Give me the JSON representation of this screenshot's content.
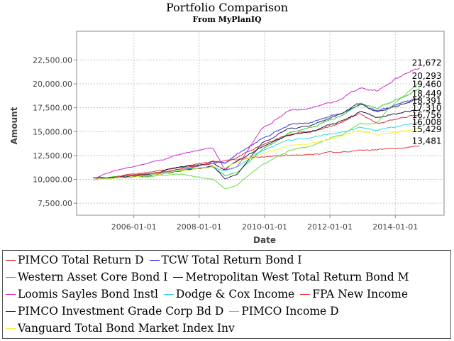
{
  "chart_data": {
    "type": "line",
    "title": "Portfolio Comparison",
    "subtitle": "From MyPlanIQ",
    "xlabel": "Date",
    "ylabel": "Amount",
    "x_start": "2004-10-01",
    "x_end": "2014-09-30",
    "xlim": [
      "2004-04-01",
      "2015-06-30"
    ],
    "ylim": [
      6250,
      25500
    ],
    "x_ticks": [
      "2006-01-01",
      "2008-01-01",
      "2010-01-01",
      "2012-01-01",
      "2014-01-01"
    ],
    "y_ticks": [
      7500,
      10000,
      12500,
      15000,
      17500,
      20000,
      22500
    ],
    "y_tick_labels": [
      "7,500.00",
      "10,000.00",
      "12,500.00",
      "15,000.00",
      "17,500.00",
      "20,000.00",
      "22,500.00"
    ],
    "grid": true,
    "legend_position": "bottom",
    "series": [
      {
        "name": "PIMCO Total Return D",
        "color": "#d9333a",
        "end_label": "16,756",
        "x": [
          "2004-10-01",
          "2005-06-01",
          "2006-06-01",
          "2007-06-01",
          "2008-06-01",
          "2008-10-15",
          "2009-03-01",
          "2009-12-01",
          "2010-10-01",
          "2011-06-01",
          "2012-06-01",
          "2012-12-01",
          "2013-06-15",
          "2014-01-01",
          "2014-09-30"
        ],
        "values": [
          10000,
          10300,
          10700,
          11300,
          11900,
          11700,
          12300,
          13600,
          14700,
          15000,
          16000,
          16900,
          15900,
          16300,
          16756
        ]
      },
      {
        "name": "TCW Total Return Bond I",
        "color": "#3a3ad9",
        "end_label": "18,449",
        "x": [
          "2004-10-01",
          "2005-06-01",
          "2006-06-01",
          "2007-06-01",
          "2008-06-01",
          "2008-10-15",
          "2009-03-01",
          "2009-12-01",
          "2010-10-01",
          "2011-06-01",
          "2012-06-01",
          "2012-12-01",
          "2013-06-15",
          "2014-01-01",
          "2014-09-30"
        ],
        "values": [
          10000,
          10150,
          10350,
          11000,
          11800,
          11700,
          12600,
          14300,
          15700,
          16000,
          17000,
          17900,
          17200,
          17800,
          18449
        ]
      },
      {
        "name": "Western Asset Core Bond I",
        "color": "#33cc33",
        "end_label": "19,460",
        "x": [
          "2004-10-01",
          "2005-06-01",
          "2006-06-01",
          "2007-06-01",
          "2008-06-01",
          "2008-10-15",
          "2009-03-01",
          "2009-12-01",
          "2010-10-01",
          "2011-06-01",
          "2012-06-01",
          "2012-12-01",
          "2013-06-15",
          "2014-01-01",
          "2014-09-30"
        ],
        "values": [
          10000,
          10300,
          10500,
          11000,
          11300,
          10400,
          10700,
          13100,
          14800,
          15400,
          16800,
          17900,
          17400,
          18300,
          19460
        ]
      },
      {
        "name": "Metropolitan West Total Return Bond M",
        "color": "#1a1a3a",
        "end_label": "17,310",
        "x": [
          "2004-10-01",
          "2005-06-01",
          "2006-06-01",
          "2007-06-01",
          "2008-06-01",
          "2008-10-15",
          "2009-03-01",
          "2009-12-01",
          "2010-10-01",
          "2011-06-01",
          "2012-06-01",
          "2012-12-01",
          "2013-06-15",
          "2014-01-01",
          "2014-09-30"
        ],
        "values": [
          10000,
          10250,
          10500,
          11300,
          11600,
          11000,
          11900,
          13400,
          14600,
          15000,
          16200,
          17000,
          16500,
          16800,
          17310
        ]
      },
      {
        "name": "Loomis Sayles Bond Instl",
        "color": "#cc33cc",
        "end_label": "21,672",
        "x": [
          "2004-10-01",
          "2005-06-01",
          "2006-06-01",
          "2007-06-01",
          "2008-06-01",
          "2008-10-15",
          "2009-03-01",
          "2009-12-01",
          "2010-10-01",
          "2011-06-01",
          "2012-06-01",
          "2012-12-01",
          "2013-06-15",
          "2014-01-01",
          "2014-09-30"
        ],
        "values": [
          10000,
          10900,
          11700,
          12600,
          13300,
          11000,
          11300,
          15300,
          17200,
          17500,
          18500,
          19600,
          19200,
          20500,
          21672
        ]
      },
      {
        "name": "Dodge & Cox Income",
        "color": "#33d9e6",
        "end_label": "16,008",
        "x": [
          "2004-10-01",
          "2005-06-01",
          "2006-06-01",
          "2007-06-01",
          "2008-06-01",
          "2008-10-15",
          "2009-03-01",
          "2009-12-01",
          "2010-10-01",
          "2011-06-01",
          "2012-06-01",
          "2012-12-01",
          "2013-06-15",
          "2014-01-01",
          "2014-09-30"
        ],
        "values": [
          10000,
          10150,
          10450,
          11000,
          11300,
          10900,
          11300,
          13000,
          14100,
          14400,
          15000,
          15400,
          15100,
          15500,
          16008
        ]
      },
      {
        "name": "FPA New Income",
        "color": "#e04040",
        "end_label": "13,481",
        "x": [
          "2004-10-01",
          "2005-06-01",
          "2006-06-01",
          "2007-06-01",
          "2008-06-01",
          "2008-10-15",
          "2009-03-01",
          "2009-12-01",
          "2010-10-01",
          "2011-06-01",
          "2012-06-01",
          "2012-12-01",
          "2013-06-15",
          "2014-01-01",
          "2014-09-30"
        ],
        "values": [
          10000,
          10250,
          10600,
          11100,
          11700,
          12000,
          12100,
          12350,
          12500,
          12650,
          12900,
          13000,
          13100,
          13250,
          13481
        ]
      },
      {
        "name": "PIMCO Investment Grade Corp Bd D",
        "color": "#2a2a5a",
        "end_label": "18,391",
        "x": [
          "2004-10-01",
          "2005-06-01",
          "2006-06-01",
          "2007-06-01",
          "2008-06-01",
          "2008-10-15",
          "2009-03-01",
          "2009-12-01",
          "2010-10-01",
          "2011-06-01",
          "2012-06-01",
          "2012-12-01",
          "2013-06-15",
          "2014-01-01",
          "2014-09-30"
        ],
        "values": [
          10200,
          10250,
          10400,
          10800,
          11400,
          10100,
          10500,
          13800,
          15300,
          15600,
          17000,
          17900,
          17000,
          17600,
          18391
        ]
      },
      {
        "name": "PIMCO Income D",
        "color": "#66dd44",
        "end_label": "20,293",
        "x": [
          "2004-10-01",
          "2005-06-01",
          "2006-06-01",
          "2007-06-01",
          "2008-06-01",
          "2008-10-15",
          "2009-03-01",
          "2009-12-01",
          "2010-10-01",
          "2011-06-01",
          "2012-06-01",
          "2012-12-01",
          "2013-06-15",
          "2014-01-01",
          "2014-09-30"
        ],
        "values": [
          10000,
          10100,
          10300,
          10600,
          10000,
          9000,
          9400,
          11500,
          13000,
          13500,
          14800,
          15800,
          15900,
          18000,
          20293
        ]
      },
      {
        "name": "Vanguard Total Bond Market Index Inv",
        "color": "#f2f23a",
        "end_label": "15,429",
        "x": [
          "2004-10-01",
          "2005-06-01",
          "2006-06-01",
          "2007-06-01",
          "2008-06-01",
          "2008-10-15",
          "2009-03-01",
          "2009-12-01",
          "2010-10-01",
          "2011-06-01",
          "2012-06-01",
          "2012-12-01",
          "2013-06-15",
          "2014-01-01",
          "2014-09-30"
        ],
        "values": [
          10000,
          10150,
          10350,
          10900,
          11300,
          11300,
          11800,
          12700,
          13500,
          13800,
          14600,
          15100,
          14700,
          14900,
          15429
        ]
      }
    ]
  }
}
